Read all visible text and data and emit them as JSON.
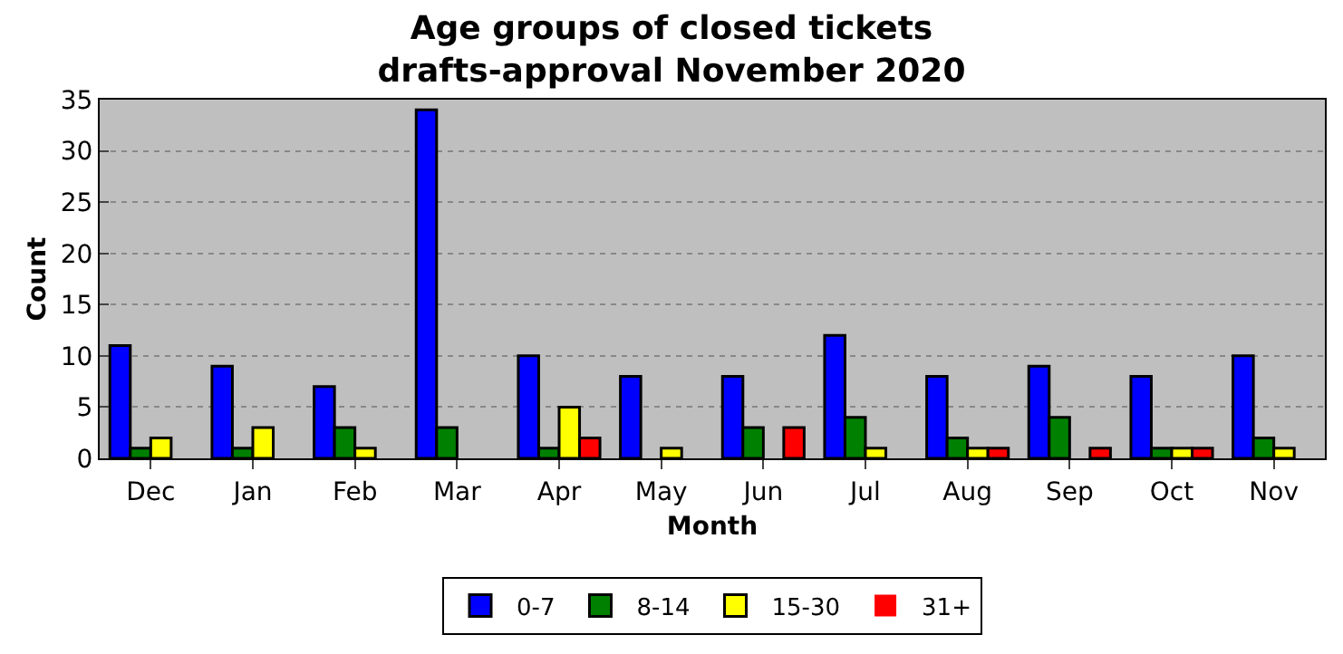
{
  "chart_data": {
    "type": "bar",
    "title": "Age groups of closed tickets\ndrafts-approval November 2020",
    "xlabel": "Month",
    "ylabel": "Count",
    "categories": [
      "Dec",
      "Jan",
      "Feb",
      "Mar",
      "Apr",
      "May",
      "Jun",
      "Jul",
      "Aug",
      "Sep",
      "Oct",
      "Nov"
    ],
    "series": [
      {
        "name": "0-7",
        "color": "#0000ff",
        "values": [
          11,
          9,
          7,
          34,
          10,
          8,
          8,
          12,
          8,
          9,
          8,
          10
        ]
      },
      {
        "name": "8-14",
        "color": "#008000",
        "values": [
          1,
          1,
          3,
          3,
          1,
          0,
          3,
          4,
          2,
          4,
          1,
          2
        ]
      },
      {
        "name": "15-30",
        "color": "#ffff00",
        "values": [
          2,
          3,
          1,
          0,
          5,
          1,
          0,
          1,
          1,
          0,
          1,
          1
        ]
      },
      {
        "name": "31+",
        "color": "#ff0000",
        "values": [
          0,
          0,
          0,
          0,
          2,
          0,
          3,
          0,
          1,
          1,
          1,
          0
        ]
      }
    ],
    "ylim": [
      0,
      35
    ],
    "yticks": [
      0,
      5,
      10,
      15,
      20,
      25,
      30,
      35
    ],
    "grid": "y",
    "legend": "bottom"
  }
}
